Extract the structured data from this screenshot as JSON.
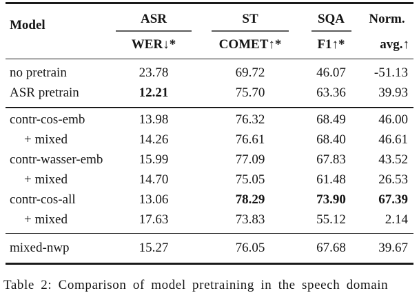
{
  "table": {
    "model_header": "Model",
    "column_groups": [
      {
        "group": "ASR",
        "metric": "WER↓*",
        "rule": true
      },
      {
        "group": "ST",
        "metric": "COMET↑*",
        "rule": true
      },
      {
        "group": "SQA",
        "metric": "F1↑*",
        "rule": true
      },
      {
        "group": "Norm.",
        "metric": "avg.↑",
        "rule": false
      }
    ],
    "sections": [
      {
        "rows": [
          {
            "model": "no pretrain",
            "indent": false,
            "values": [
              "23.78",
              "69.72",
              "46.07",
              "-51.13"
            ],
            "bold": [
              false,
              false,
              false,
              false
            ]
          },
          {
            "model": "ASR pretrain",
            "indent": false,
            "values": [
              "12.21",
              "75.70",
              "63.36",
              "39.93"
            ],
            "bold": [
              true,
              false,
              false,
              false
            ]
          }
        ]
      },
      {
        "rows": [
          {
            "model": "contr-cos-emb",
            "indent": false,
            "values": [
              "13.98",
              "76.32",
              "68.49",
              "46.00"
            ],
            "bold": [
              false,
              false,
              false,
              false
            ]
          },
          {
            "model": "+ mixed",
            "indent": true,
            "values": [
              "14.26",
              "76.61",
              "68.40",
              "46.61"
            ],
            "bold": [
              false,
              false,
              false,
              false
            ]
          },
          {
            "model": "contr-wasser-emb",
            "indent": false,
            "values": [
              "15.99",
              "77.09",
              "67.83",
              "43.52"
            ],
            "bold": [
              false,
              false,
              false,
              false
            ]
          },
          {
            "model": "+ mixed",
            "indent": true,
            "values": [
              "14.70",
              "75.05",
              "61.48",
              "26.53"
            ],
            "bold": [
              false,
              false,
              false,
              false
            ]
          },
          {
            "model": "contr-cos-all",
            "indent": false,
            "values": [
              "13.06",
              "78.29",
              "73.90",
              "67.39"
            ],
            "bold": [
              false,
              true,
              true,
              true
            ]
          },
          {
            "model": "+ mixed",
            "indent": true,
            "values": [
              "17.63",
              "73.83",
              "55.12",
              "2.14"
            ],
            "bold": [
              false,
              false,
              false,
              false
            ]
          }
        ]
      },
      {
        "rows": [
          {
            "model": "mixed-nwp",
            "indent": false,
            "values": [
              "15.27",
              "76.05",
              "67.68",
              "39.67"
            ],
            "bold": [
              false,
              false,
              false,
              false
            ]
          }
        ]
      }
    ]
  },
  "caption": "Table 2: Comparison of model pretraining in the speech domain",
  "colors": {
    "text": "#151515",
    "rule_heavy": "#1a1a1a",
    "rule_light": "#5a5a5a",
    "background": "#ffffff"
  }
}
